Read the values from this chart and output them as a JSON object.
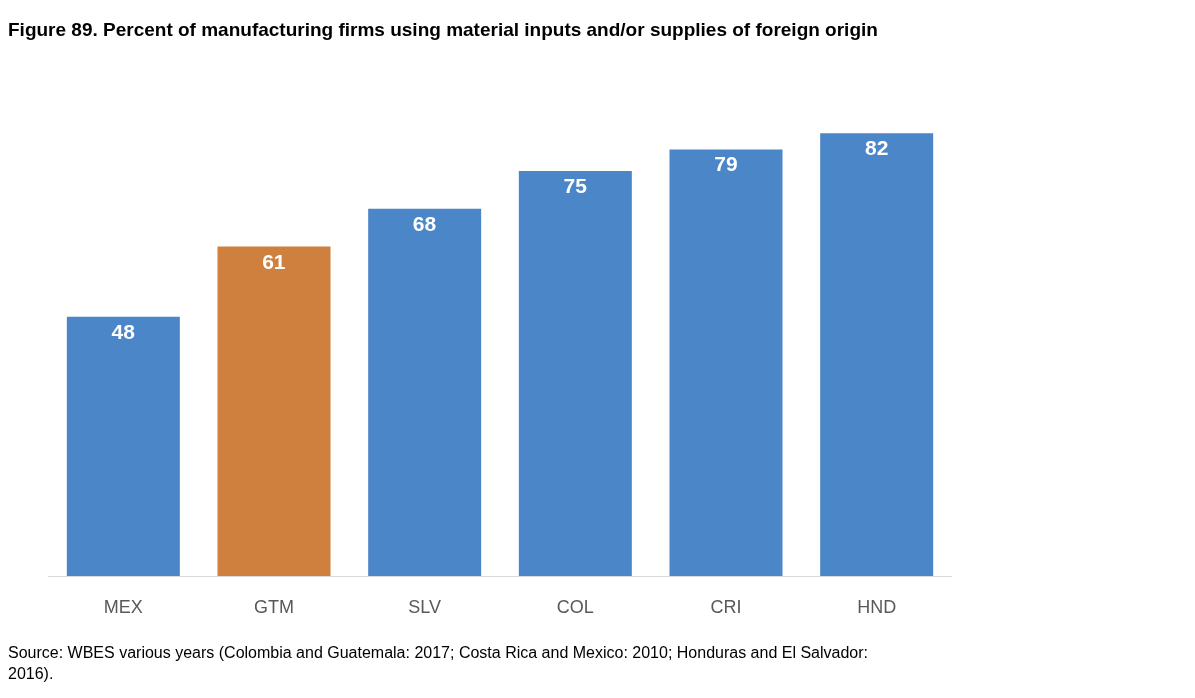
{
  "chart_data": {
    "type": "bar",
    "title": "Figure 89. Percent of manufacturing firms using material inputs and/or supplies of foreign origin",
    "categories": [
      "MEX",
      "GTM",
      "SLV",
      "COL",
      "CRI",
      "HND"
    ],
    "values": [
      48,
      61,
      68,
      75,
      79,
      82
    ],
    "colors": [
      "#4a86c8",
      "#d0803e",
      "#4a86c8",
      "#4a86c8",
      "#4a86c8",
      "#4a86c8"
    ],
    "data_labels": true,
    "annotations": [
      "Source: WBES various years (Colombia and Guatemala: 2017; Costa Rica and Mexico: 2010; Honduras and El Salvador: 2016)."
    ]
  }
}
